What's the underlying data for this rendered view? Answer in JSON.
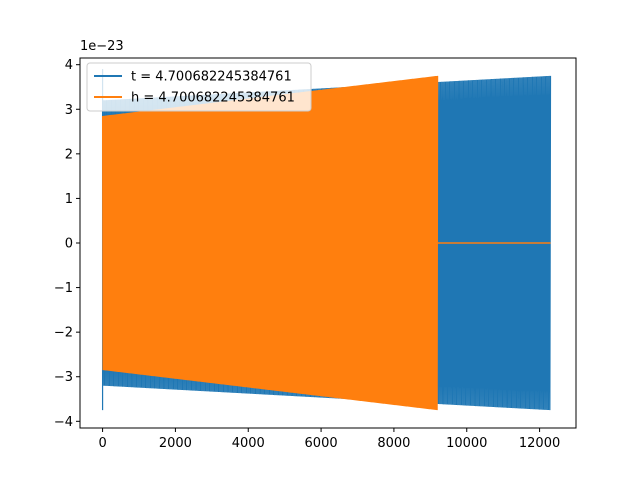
{
  "chart_data": {
    "type": "line",
    "title": "",
    "xlabel": "",
    "ylabel": "",
    "y_offset_label": "1e−23",
    "xlim": [
      -620,
      13000
    ],
    "ylim": [
      -4.15,
      4.15
    ],
    "x_ticks": [
      0,
      2000,
      4000,
      6000,
      8000,
      10000,
      12000
    ],
    "x_tick_labels": [
      "0",
      "2000",
      "4000",
      "6000",
      "8000",
      "10000",
      "12000"
    ],
    "y_ticks": [
      -4,
      -3,
      -2,
      -1,
      0,
      1,
      2,
      3,
      4
    ],
    "y_tick_labels": [
      "−4",
      "−3",
      "−2",
      "−1",
      "0",
      "1",
      "2",
      "3",
      "4"
    ],
    "grid": false,
    "legend_position": "top-left",
    "series": [
      {
        "name": "t = 4.700682245384761",
        "color": "#1f77b4",
        "kind": "oscillation",
        "x_start": 0,
        "x_end": 12300,
        "amplitude_start": 3.2,
        "amplitude_end": 3.75,
        "initial_spike": [
          3.9,
          -3.75
        ]
      },
      {
        "name": "h = 4.700682245384761",
        "color": "#ff7f0e",
        "kind": "oscillation",
        "x_start": 0,
        "x_end": 9200,
        "amplitude_start": 2.85,
        "amplitude_end": 3.75,
        "tail_zero_until": 12300
      }
    ]
  }
}
